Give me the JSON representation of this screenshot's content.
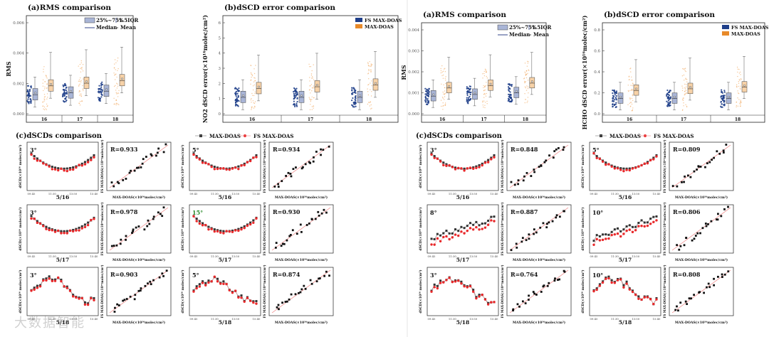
{
  "watermark": "大数据智能",
  "left_figure": {
    "panel_a": {
      "title": "(a)RMS comparison",
      "ylabel": "RMS",
      "yticks": [
        "0.000",
        "0.002",
        "0.004",
        "0.006"
      ],
      "xticks": [
        "16",
        "17",
        "18"
      ],
      "legend": {
        "box": "25%~75%",
        "iqr": "1.5IQR",
        "median": "Median",
        "mean": "Mean"
      }
    },
    "panel_b": {
      "title": "(b)dSCD error comparison",
      "ylabel": "NO2 dSCD error(×10¹⁶molec/cm²)",
      "yticks": [
        "0",
        "1",
        "2",
        "3",
        "4",
        "5",
        "6"
      ],
      "xticks": [
        "16",
        "17",
        "18"
      ],
      "legend": {
        "fs": "FS MAX-DOAS",
        "max": "MAX-DOAS"
      }
    },
    "panel_c": {
      "title": "(c)dSCDs comparison",
      "legend": {
        "max": "MAX-DOAS",
        "fs": "FS MAX-DOAS"
      },
      "ylabel": "dSCD(×10¹⁶ molec/cm²)",
      "scatter_xlabel": "MAX-DOAS(×10¹⁶molec/cm²)",
      "scatter_ylabel": "FS MAX-DOAS(×10¹⁶molec/cm²)",
      "rows": [
        {
          "date": "5/16",
          "angles": [
            "3°",
            "5°"
          ],
          "r": [
            "R=0.933",
            "R=0.934"
          ]
        },
        {
          "date": "5/17",
          "angles": [
            "3°",
            "15°"
          ],
          "r": [
            "R=0.978",
            "R=0.930"
          ]
        },
        {
          "date": "5/18",
          "angles": [
            "3°",
            "5°"
          ],
          "r": [
            "R=0.903",
            "R=0.874"
          ]
        }
      ]
    }
  },
  "right_figure": {
    "panel_a": {
      "title": "(a)RMS comparison",
      "ylabel": "RMS",
      "yticks": [
        "0.000",
        "0.001",
        "0.002",
        "0.003",
        "0.004"
      ],
      "xticks": [
        "16",
        "17",
        "18"
      ],
      "legend": {
        "box": "25%~75%",
        "iqr": "1.5IQR",
        "median": "Median",
        "mean": "Mean"
      }
    },
    "panel_b": {
      "title": "(b)dSCD error comparison",
      "ylabel": "HCHO dSCD error(×10¹⁶molec/cm²)",
      "yticks": [
        "0.0",
        "0.2",
        "0.4",
        "0.6",
        "0.8"
      ],
      "xticks": [
        "16",
        "17",
        "18"
      ],
      "legend": {
        "fs": "FS MAX-DOAS",
        "max": "MAX-DOAS"
      }
    },
    "panel_c": {
      "title": "(c)dSCDs comparison",
      "legend": {
        "max": "MAX-DOAS",
        "fs": "FS MAX-DOAS"
      },
      "ylabel": "dSCD(×10¹⁶ molec/cm²)",
      "scatter_xlabel": "MAX-DOAS(×10¹⁶molec/cm²)",
      "scatter_ylabel": "FS MAX-DOAS(×10¹⁶molec/cm²)",
      "rows": [
        {
          "date": "5/16",
          "angles": [
            "3°",
            "5°"
          ],
          "r": [
            "R=0.848",
            "R=0.809"
          ]
        },
        {
          "date": "5/17",
          "angles": [
            "8°",
            "10°"
          ],
          "r": [
            "R=0.887",
            "R=0.806"
          ]
        },
        {
          "date": "5/18",
          "angles": [
            "3°",
            "10°"
          ],
          "r": [
            "R=0.764",
            "R=0.808"
          ]
        }
      ]
    }
  },
  "colors": {
    "fs": "#1f3f8a",
    "max": "#f0a050",
    "max_dark": "#e88a2a",
    "series_black": "#333333",
    "series_red": "#e8282a",
    "fit": "#f08080",
    "box_blue": "#a9b5d6"
  }
}
